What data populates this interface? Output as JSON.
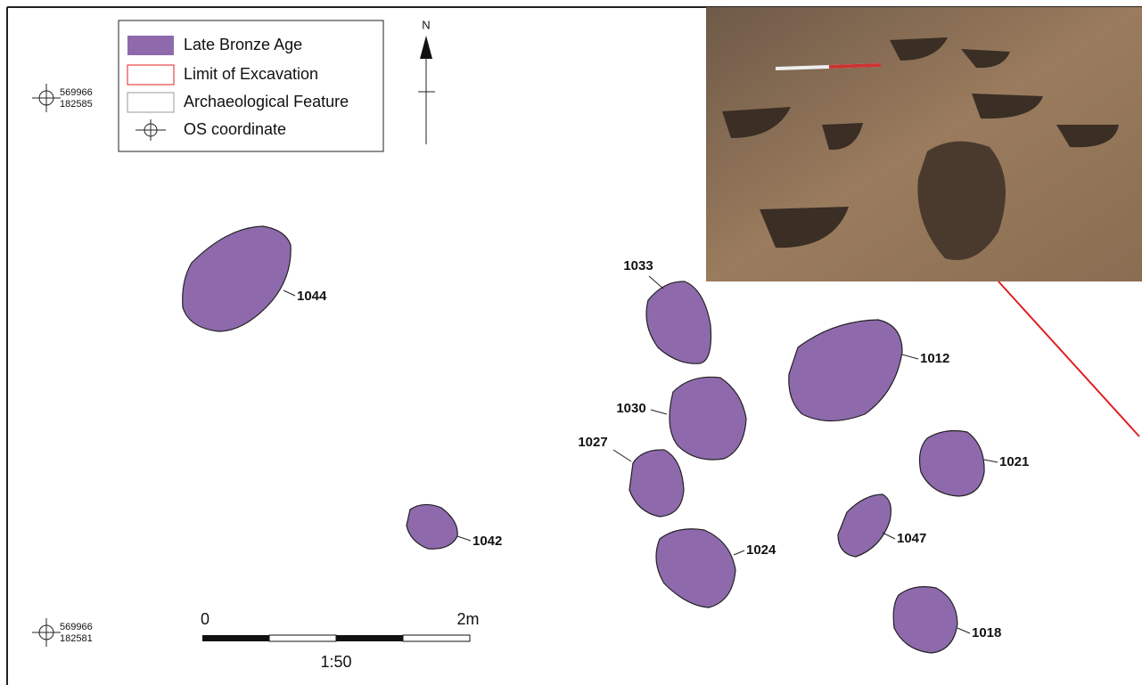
{
  "legend": {
    "items": [
      "Late Bronze Age",
      "Limit of Excavation",
      "Archaeological Feature",
      "OS coordinate"
    ]
  },
  "north": "N",
  "coordinates": [
    {
      "easting": "569966",
      "northing": "182585"
    },
    {
      "easting": "569966",
      "northing": "182581"
    }
  ],
  "features": [
    "1044",
    "1033",
    "1012",
    "1030",
    "1027",
    "1042",
    "1024",
    "1021",
    "1047",
    "1018"
  ],
  "scale": {
    "start": "0",
    "end": "2m",
    "ratio": "1:50"
  }
}
